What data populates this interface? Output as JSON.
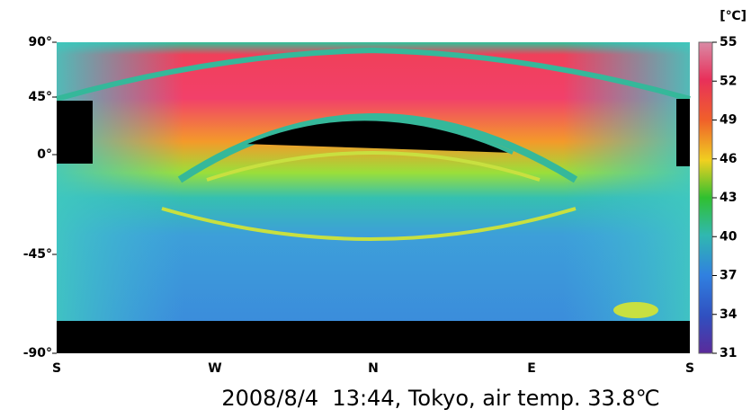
{
  "axes": {
    "y_labels": [
      "90°",
      "45°",
      "0°",
      "-45°",
      "-90°"
    ],
    "x_labels": [
      "S",
      "W",
      "N",
      "E",
      "S"
    ]
  },
  "colorbar": {
    "unit": "[℃]",
    "range": [
      31,
      55
    ],
    "ticks": [
      55,
      52,
      49,
      46,
      43,
      40,
      37,
      34,
      31
    ]
  },
  "caption": "2008/8/4  13:44, Tokyo, air temp. 33.8℃"
}
